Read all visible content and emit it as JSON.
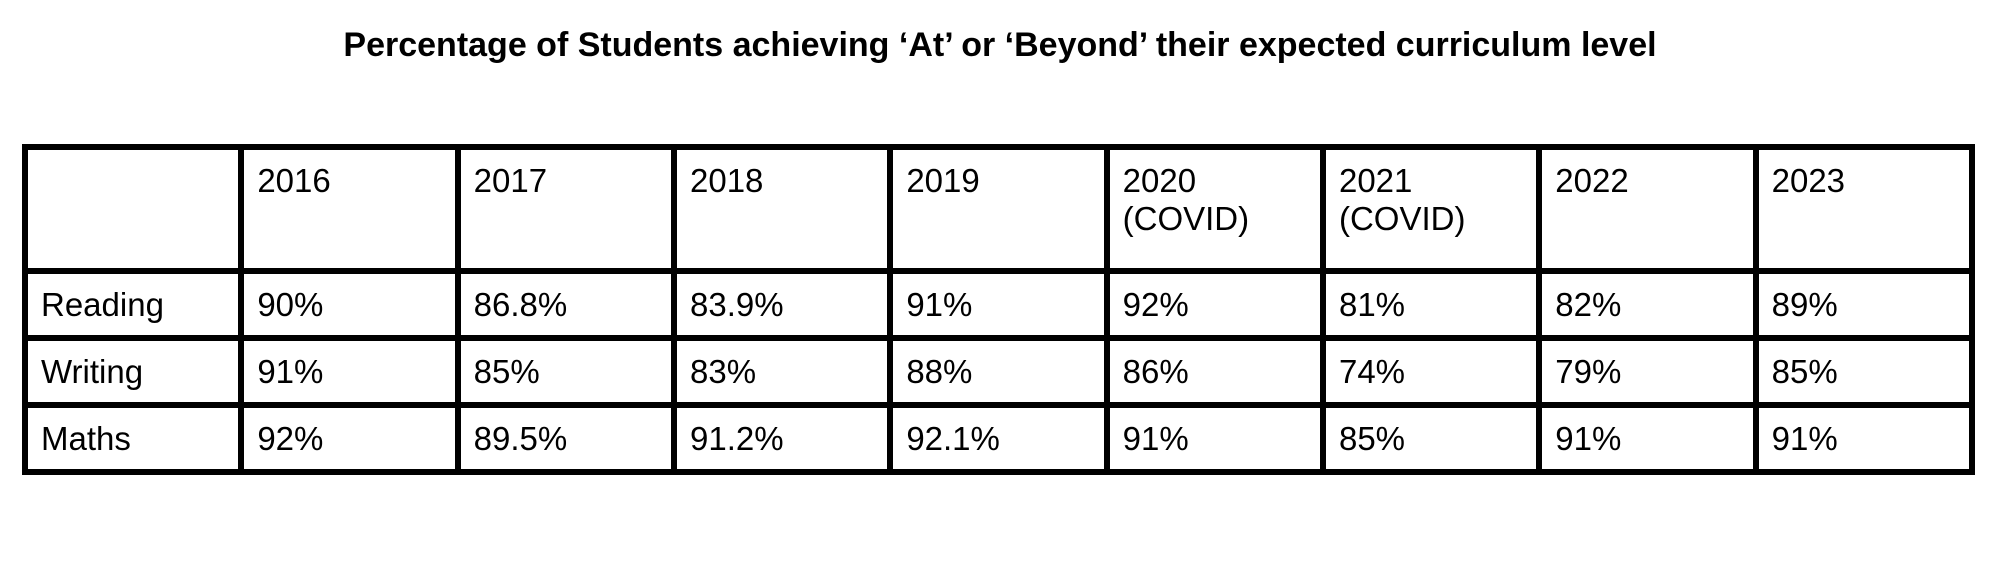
{
  "chart_data": {
    "type": "table",
    "title": "Percentage of Students achieving ‘At’ or ‘Beyond’ their expected curriculum level",
    "columns": [
      {
        "label": "",
        "note": ""
      },
      {
        "label": "2016",
        "note": ""
      },
      {
        "label": "2017",
        "note": ""
      },
      {
        "label": "2018",
        "note": ""
      },
      {
        "label": "2019",
        "note": ""
      },
      {
        "label": "2020",
        "note": "(COVID)"
      },
      {
        "label": "2021",
        "note": "(COVID)"
      },
      {
        "label": "2022",
        "note": ""
      },
      {
        "label": "2023",
        "note": ""
      }
    ],
    "rows": [
      {
        "label": "Reading",
        "values": [
          "90%",
          "86.8%",
          "83.9%",
          "91%",
          "92%",
          "81%",
          "82%",
          "89%"
        ]
      },
      {
        "label": "Writing",
        "values": [
          "91%",
          "85%",
          "83%",
          "88%",
          "86%",
          "74%",
          "79%",
          "85%"
        ]
      },
      {
        "label": "Maths",
        "values": [
          "92%",
          "89.5%",
          "91.2%",
          "92.1%",
          "91%",
          "85%",
          "91%",
          "91%"
        ]
      }
    ]
  }
}
